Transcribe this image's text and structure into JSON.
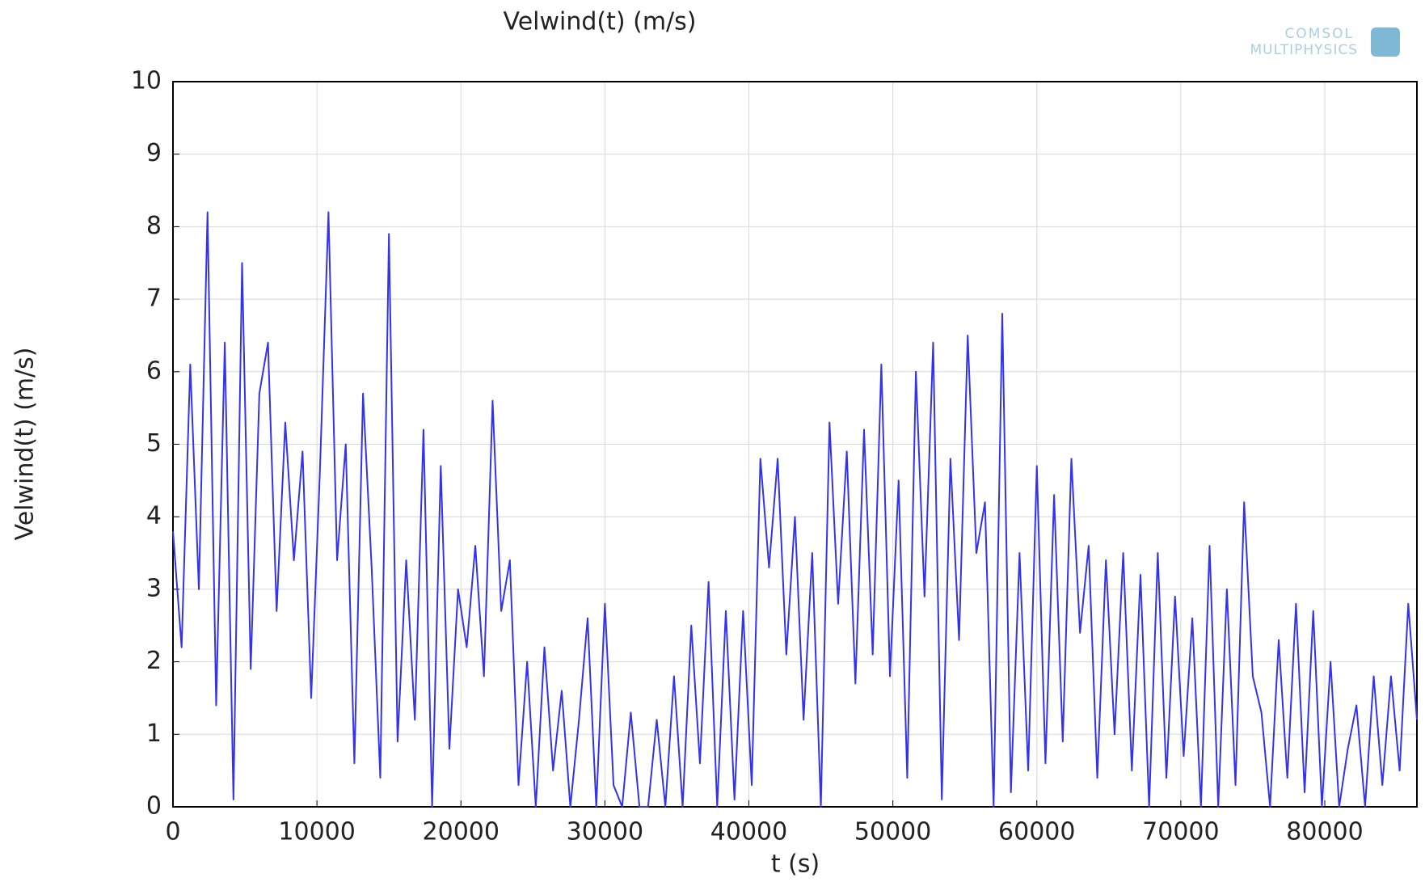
{
  "chart_data": {
    "type": "line",
    "title": "Velwind(t) (m/s)",
    "x_label": "t (s)",
    "y_label": "Velwind(t) (m/s)",
    "watermark": [
      "COMSOL",
      "MULTIPHYSICS"
    ],
    "x": [
      0,
      600,
      1200,
      1800,
      2400,
      3000,
      3600,
      4200,
      4800,
      5400,
      6000,
      6600,
      7200,
      7800,
      8400,
      9000,
      9600,
      10200,
      10800,
      11400,
      12000,
      12600,
      13200,
      13800,
      14400,
      15000,
      15600,
      16200,
      16800,
      17400,
      18000,
      18600,
      19200,
      19800,
      20400,
      21000,
      21600,
      22200,
      22800,
      23400,
      24000,
      24600,
      25200,
      25800,
      26400,
      27000,
      27600,
      28200,
      28800,
      29400,
      30000,
      30600,
      31200,
      31800,
      32400,
      33000,
      33600,
      34200,
      34800,
      35400,
      36000,
      36600,
      37200,
      37800,
      38400,
      39000,
      39600,
      40200,
      40800,
      41400,
      42000,
      42600,
      43200,
      43800,
      44400,
      45000,
      45600,
      46200,
      46800,
      47400,
      48000,
      48600,
      49200,
      49800,
      50400,
      51000,
      51600,
      52200,
      52800,
      53400,
      54000,
      54600,
      55200,
      55800,
      56400,
      57000,
      57600,
      58200,
      58800,
      59400,
      60000,
      60600,
      61200,
      61800,
      62400,
      63000,
      63600,
      64200,
      64800,
      65400,
      66000,
      66600,
      67200,
      67800,
      68400,
      69000,
      69600,
      70200,
      70800,
      71400,
      72000,
      72600,
      73200,
      73800,
      74400,
      75000,
      75600,
      76200,
      76800,
      77400,
      78000,
      78600,
      79200,
      79800,
      80400,
      81000,
      81600,
      82200,
      82800,
      83400,
      84000,
      84600,
      85200,
      85800,
      86400
    ],
    "series": [
      {
        "name": "Velwind(t)",
        "color": "#3333ee",
        "values": [
          3.8,
          2.2,
          6.1,
          3.0,
          8.2,
          1.4,
          6.4,
          0.1,
          7.5,
          1.9,
          5.7,
          6.4,
          2.7,
          5.3,
          3.4,
          4.9,
          1.5,
          4.6,
          8.2,
          3.4,
          5.0,
          0.6,
          5.7,
          3.3,
          0.4,
          7.9,
          0.9,
          3.4,
          1.2,
          5.2,
          0.0,
          4.7,
          0.8,
          3.0,
          2.2,
          3.6,
          1.8,
          5.6,
          2.7,
          3.4,
          0.3,
          2.0,
          0.0,
          2.2,
          0.5,
          1.6,
          0.0,
          1.2,
          2.6,
          0.0,
          2.8,
          0.3,
          0.0,
          1.3,
          0.0,
          0.0,
          1.2,
          0.0,
          1.8,
          0.0,
          2.5,
          0.6,
          3.1,
          0.0,
          2.7,
          0.1,
          2.7,
          0.3,
          4.8,
          3.3,
          4.8,
          2.1,
          4.0,
          1.2,
          3.5,
          0.0,
          5.3,
          2.8,
          4.9,
          1.7,
          5.2,
          2.1,
          6.1,
          1.8,
          4.5,
          0.4,
          6.0,
          2.9,
          6.4,
          0.1,
          4.8,
          2.3,
          6.5,
          3.5,
          4.2,
          0.0,
          6.8,
          0.2,
          3.5,
          0.5,
          4.7,
          0.6,
          4.3,
          0.9,
          4.8,
          2.4,
          3.6,
          0.4,
          3.4,
          1.0,
          3.5,
          0.5,
          3.2,
          0.0,
          3.5,
          0.4,
          2.9,
          0.7,
          2.6,
          0.0,
          3.6,
          0.0,
          3.0,
          0.3,
          4.2,
          1.8,
          1.3,
          0.0,
          2.3,
          0.4,
          2.8,
          0.2,
          2.7,
          0.0,
          2.0,
          0.0,
          0.8,
          1.4,
          0.0,
          1.8,
          0.3,
          1.8,
          0.5,
          2.8,
          1.2
        ]
      }
    ],
    "xlim": [
      0,
      86400
    ],
    "xticks": [
      0,
      10000,
      20000,
      30000,
      40000,
      50000,
      60000,
      70000,
      80000
    ],
    "ylim": [
      0,
      10
    ],
    "yticks": [
      0,
      1,
      2,
      3,
      4,
      5,
      6,
      7,
      8,
      9,
      10
    ],
    "grid": true
  }
}
